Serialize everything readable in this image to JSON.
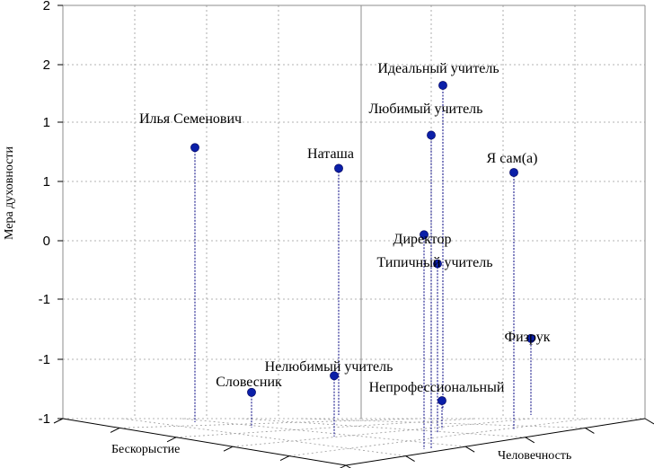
{
  "chart_data": {
    "type": "scatter3d",
    "title": "",
    "z_axis_label": "Мера духовности",
    "x_axis_label": "Бескорыстие",
    "y_axis_label": "Человечность",
    "z_tick_labels": [
      "2",
      "2",
      "1",
      "1",
      "0",
      "-1",
      "-1",
      "-1"
    ],
    "grid": true,
    "points": [
      {
        "label": "Идеальный учитель",
        "z": 1.6
      },
      {
        "label": "Любимый учитель",
        "z": 1.0
      },
      {
        "label": "Илья Семенович",
        "z": 0.85
      },
      {
        "label": "Наташа",
        "z": 0.6
      },
      {
        "label": "Я сам(а)",
        "z": 0.55
      },
      {
        "label": "Директор",
        "z": -0.2
      },
      {
        "label": "Типичный учитель",
        "z": -0.55
      },
      {
        "label": "Физрук",
        "z": -1.45
      },
      {
        "label": "Нелюбимый учитель",
        "z": -1.9
      },
      {
        "label": "Словесник",
        "z": -2.1
      },
      {
        "label": "Непрофессиональный",
        "z": -2.2
      }
    ]
  }
}
